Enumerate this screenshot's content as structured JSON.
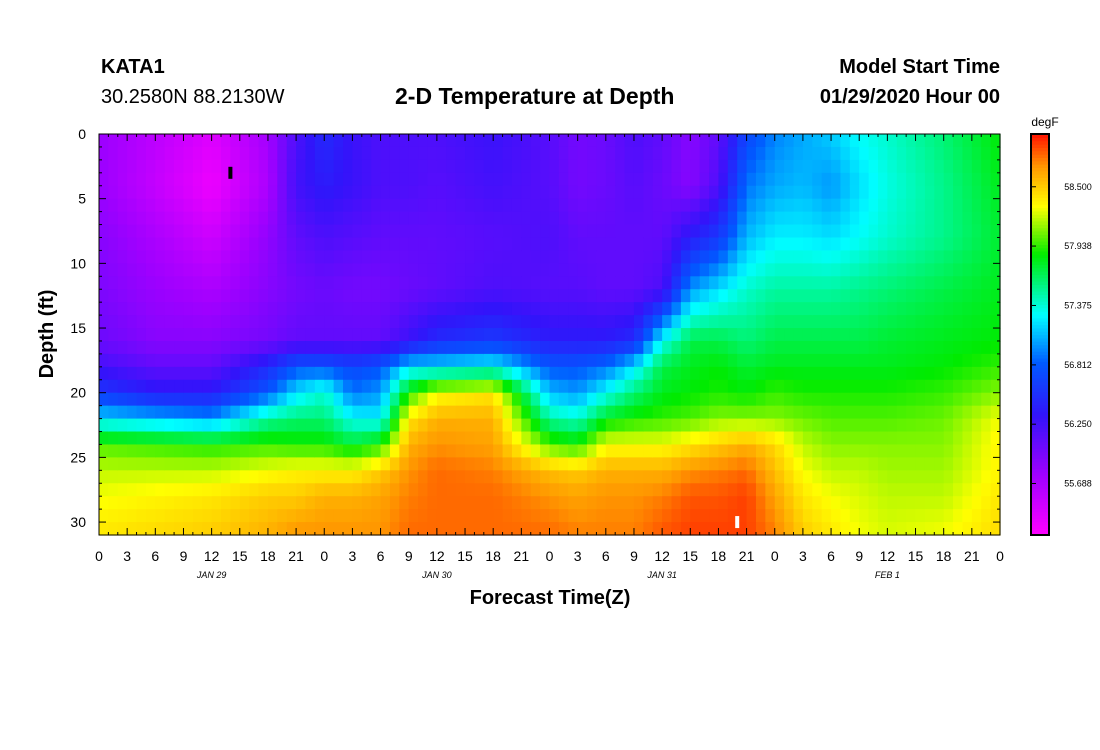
{
  "header": {
    "station": "KATA1",
    "coordinates": "30.2580N 88.2130W",
    "title": "2-D Temperature at Depth",
    "model_start_label": "Model Start Time",
    "model_start_value": "01/29/2020 Hour 00"
  },
  "chart_data": {
    "type": "heatmap",
    "title": "2-D Temperature at Depth",
    "xlabel": "Forecast Time(Z)",
    "ylabel": "Depth (ft)",
    "x_unit": "hours since model start",
    "xlim": [
      0,
      96
    ],
    "ylim": [
      0,
      31
    ],
    "y_inverted": true,
    "x_tick_labels": [
      "0",
      "3",
      "6",
      "9",
      "12",
      "15",
      "18",
      "21",
      "0",
      "3",
      "6",
      "9",
      "12",
      "15",
      "18",
      "21",
      "0",
      "3",
      "6",
      "9",
      "12",
      "15",
      "18",
      "21",
      "0",
      "3",
      "6",
      "9",
      "12",
      "15",
      "18",
      "21",
      "0"
    ],
    "y_ticks": [
      0,
      5,
      10,
      15,
      20,
      25,
      30
    ],
    "date_labels": [
      {
        "label": "JAN 29",
        "hour": 12
      },
      {
        "label": "JAN 30",
        "hour": 36
      },
      {
        "label": "JAN 31",
        "hour": 60
      },
      {
        "label": "FEB 1",
        "hour": 84
      }
    ],
    "colorbar": {
      "unit": "degF",
      "min": 55.2,
      "max": 59.0,
      "tick_labels": [
        "58.500",
        "57.938",
        "57.375",
        "56.812",
        "56.250",
        "55.688"
      ],
      "tick_values": [
        58.5,
        57.938,
        57.375,
        56.812,
        56.25,
        55.688
      ]
    },
    "markers": [
      {
        "hour": 14,
        "depth": 3,
        "color": "#000000"
      },
      {
        "hour": 68,
        "depth": 30,
        "color": "#ffffff"
      }
    ],
    "profile_hours": [
      0,
      6,
      12,
      18,
      21,
      24,
      27,
      30,
      33,
      36,
      42,
      48,
      51,
      54,
      57,
      60,
      63,
      66,
      69,
      72,
      75,
      78,
      81,
      84,
      90,
      96
    ],
    "profile_depths": [
      0,
      4,
      8,
      12,
      16,
      18,
      20,
      22,
      24,
      26,
      28,
      31
    ],
    "profiles": [
      [
        55.8,
        55.8,
        55.9,
        55.95,
        56.05,
        56.25,
        56.6,
        57.2,
        58.0,
        58.2,
        58.3,
        58.4
      ],
      [
        55.6,
        55.55,
        55.7,
        55.8,
        55.9,
        56.1,
        56.4,
        57.1,
        57.95,
        58.2,
        58.35,
        58.45
      ],
      [
        55.4,
        55.3,
        55.5,
        55.7,
        55.9,
        56.1,
        56.4,
        57.0,
        57.9,
        58.2,
        58.4,
        58.5
      ],
      [
        55.75,
        55.7,
        55.85,
        55.9,
        56.0,
        56.5,
        56.8,
        57.5,
        57.95,
        58.3,
        58.5,
        58.6
      ],
      [
        56.2,
        56.25,
        56.1,
        56.0,
        56.1,
        56.8,
        57.2,
        57.6,
        57.9,
        58.35,
        58.5,
        58.7
      ],
      [
        56.5,
        56.4,
        56.2,
        56.05,
        56.1,
        56.8,
        57.4,
        57.6,
        57.9,
        58.35,
        58.6,
        58.7
      ],
      [
        56.3,
        56.3,
        56.15,
        56.0,
        56.1,
        56.7,
        56.9,
        57.3,
        57.75,
        58.35,
        58.6,
        58.7
      ],
      [
        56.2,
        56.2,
        56.1,
        56.0,
        56.1,
        56.8,
        57.0,
        57.25,
        57.9,
        58.5,
        58.65,
        58.7
      ],
      [
        56.2,
        56.2,
        56.1,
        56.05,
        56.3,
        57.2,
        57.9,
        58.4,
        58.6,
        58.7,
        58.75,
        58.8
      ],
      [
        56.2,
        56.15,
        56.1,
        56.1,
        56.5,
        57.2,
        58.3,
        58.6,
        58.7,
        58.8,
        58.8,
        58.8
      ],
      [
        56.3,
        56.25,
        56.15,
        56.2,
        56.6,
        57.3,
        58.4,
        58.6,
        58.65,
        58.75,
        58.8,
        58.8
      ],
      [
        56.15,
        56.15,
        56.2,
        56.15,
        56.4,
        56.8,
        57.1,
        57.5,
        58.0,
        58.55,
        58.7,
        58.8
      ],
      [
        56.0,
        56.0,
        56.1,
        56.15,
        56.4,
        56.8,
        57.0,
        57.4,
        57.9,
        58.5,
        58.65,
        58.75
      ],
      [
        56.05,
        56.05,
        56.1,
        56.1,
        56.4,
        56.9,
        57.3,
        57.8,
        58.3,
        58.6,
        58.7,
        58.75
      ],
      [
        56.2,
        56.15,
        56.1,
        56.1,
        56.5,
        57.2,
        57.6,
        57.9,
        58.3,
        58.6,
        58.7,
        58.75
      ],
      [
        56.1,
        56.05,
        56.1,
        56.2,
        57.3,
        57.7,
        57.8,
        57.95,
        58.3,
        58.6,
        58.75,
        58.85
      ],
      [
        55.9,
        55.9,
        56.4,
        57.0,
        57.7,
        57.8,
        57.85,
        58.0,
        58.4,
        58.7,
        58.85,
        58.9
      ],
      [
        56.1,
        56.2,
        56.6,
        57.2,
        57.7,
        57.85,
        57.9,
        58.1,
        58.5,
        58.75,
        58.85,
        58.9
      ],
      [
        56.7,
        56.9,
        57.1,
        57.4,
        57.6,
        57.75,
        57.85,
        58.1,
        58.6,
        58.8,
        58.9,
        58.9
      ],
      [
        56.95,
        57.05,
        57.25,
        57.5,
        57.7,
        57.8,
        57.95,
        58.1,
        58.45,
        58.55,
        58.65,
        58.75
      ],
      [
        57.05,
        57.1,
        57.25,
        57.5,
        57.7,
        57.8,
        57.9,
        58.05,
        58.2,
        58.3,
        58.4,
        58.5
      ],
      [
        57.15,
        57.0,
        57.2,
        57.5,
        57.7,
        57.8,
        57.9,
        58.0,
        58.1,
        58.2,
        58.3,
        58.4
      ],
      [
        57.3,
        57.2,
        57.3,
        57.55,
        57.7,
        57.8,
        57.9,
        58.0,
        58.1,
        58.2,
        58.25,
        58.3
      ],
      [
        57.4,
        57.35,
        57.4,
        57.6,
        57.75,
        57.8,
        57.9,
        58.0,
        58.1,
        58.15,
        58.2,
        58.25
      ],
      [
        57.6,
        57.55,
        57.55,
        57.7,
        57.8,
        57.85,
        57.95,
        58.05,
        58.1,
        58.15,
        58.2,
        58.3
      ],
      [
        57.85,
        57.8,
        57.75,
        57.8,
        57.85,
        57.95,
        58.1,
        58.3,
        58.35,
        58.35,
        58.4,
        58.45
      ]
    ]
  }
}
